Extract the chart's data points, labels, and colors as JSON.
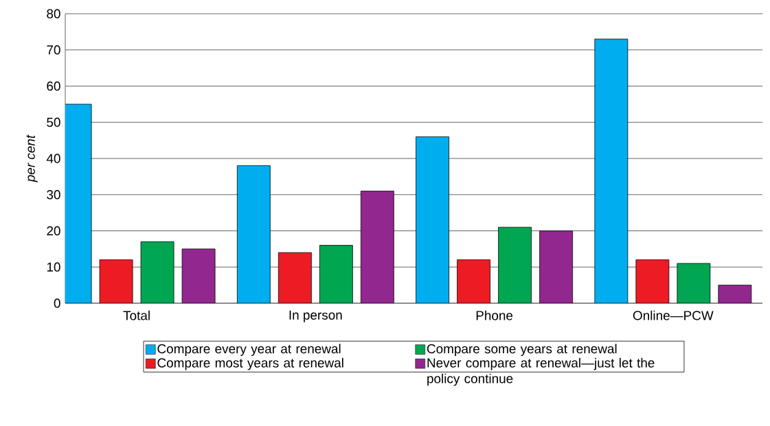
{
  "chart_data": {
    "type": "bar",
    "ylabel": "per cent",
    "categories": [
      "Total",
      "In person",
      "Phone",
      "Online—PCW"
    ],
    "series": [
      {
        "name": "Compare every year at renewal",
        "color": "#00aeef",
        "values": [
          55,
          38,
          46,
          73
        ]
      },
      {
        "name": "Compare most years at renewal",
        "color": "#ed1c24",
        "values": [
          12,
          14,
          12,
          12
        ]
      },
      {
        "name": "Compare some years at renewal",
        "color": "#00a651",
        "values": [
          17,
          16,
          21,
          11
        ]
      },
      {
        "name": "Never compare at renewal—just let the policy continue",
        "color": "#92278f",
        "values": [
          15,
          31,
          20,
          5
        ]
      }
    ],
    "ylim": [
      0,
      80
    ],
    "yticks": [
      0,
      10,
      20,
      30,
      40,
      50,
      60,
      70,
      80
    ],
    "grid": "y",
    "legend": "bottom"
  }
}
